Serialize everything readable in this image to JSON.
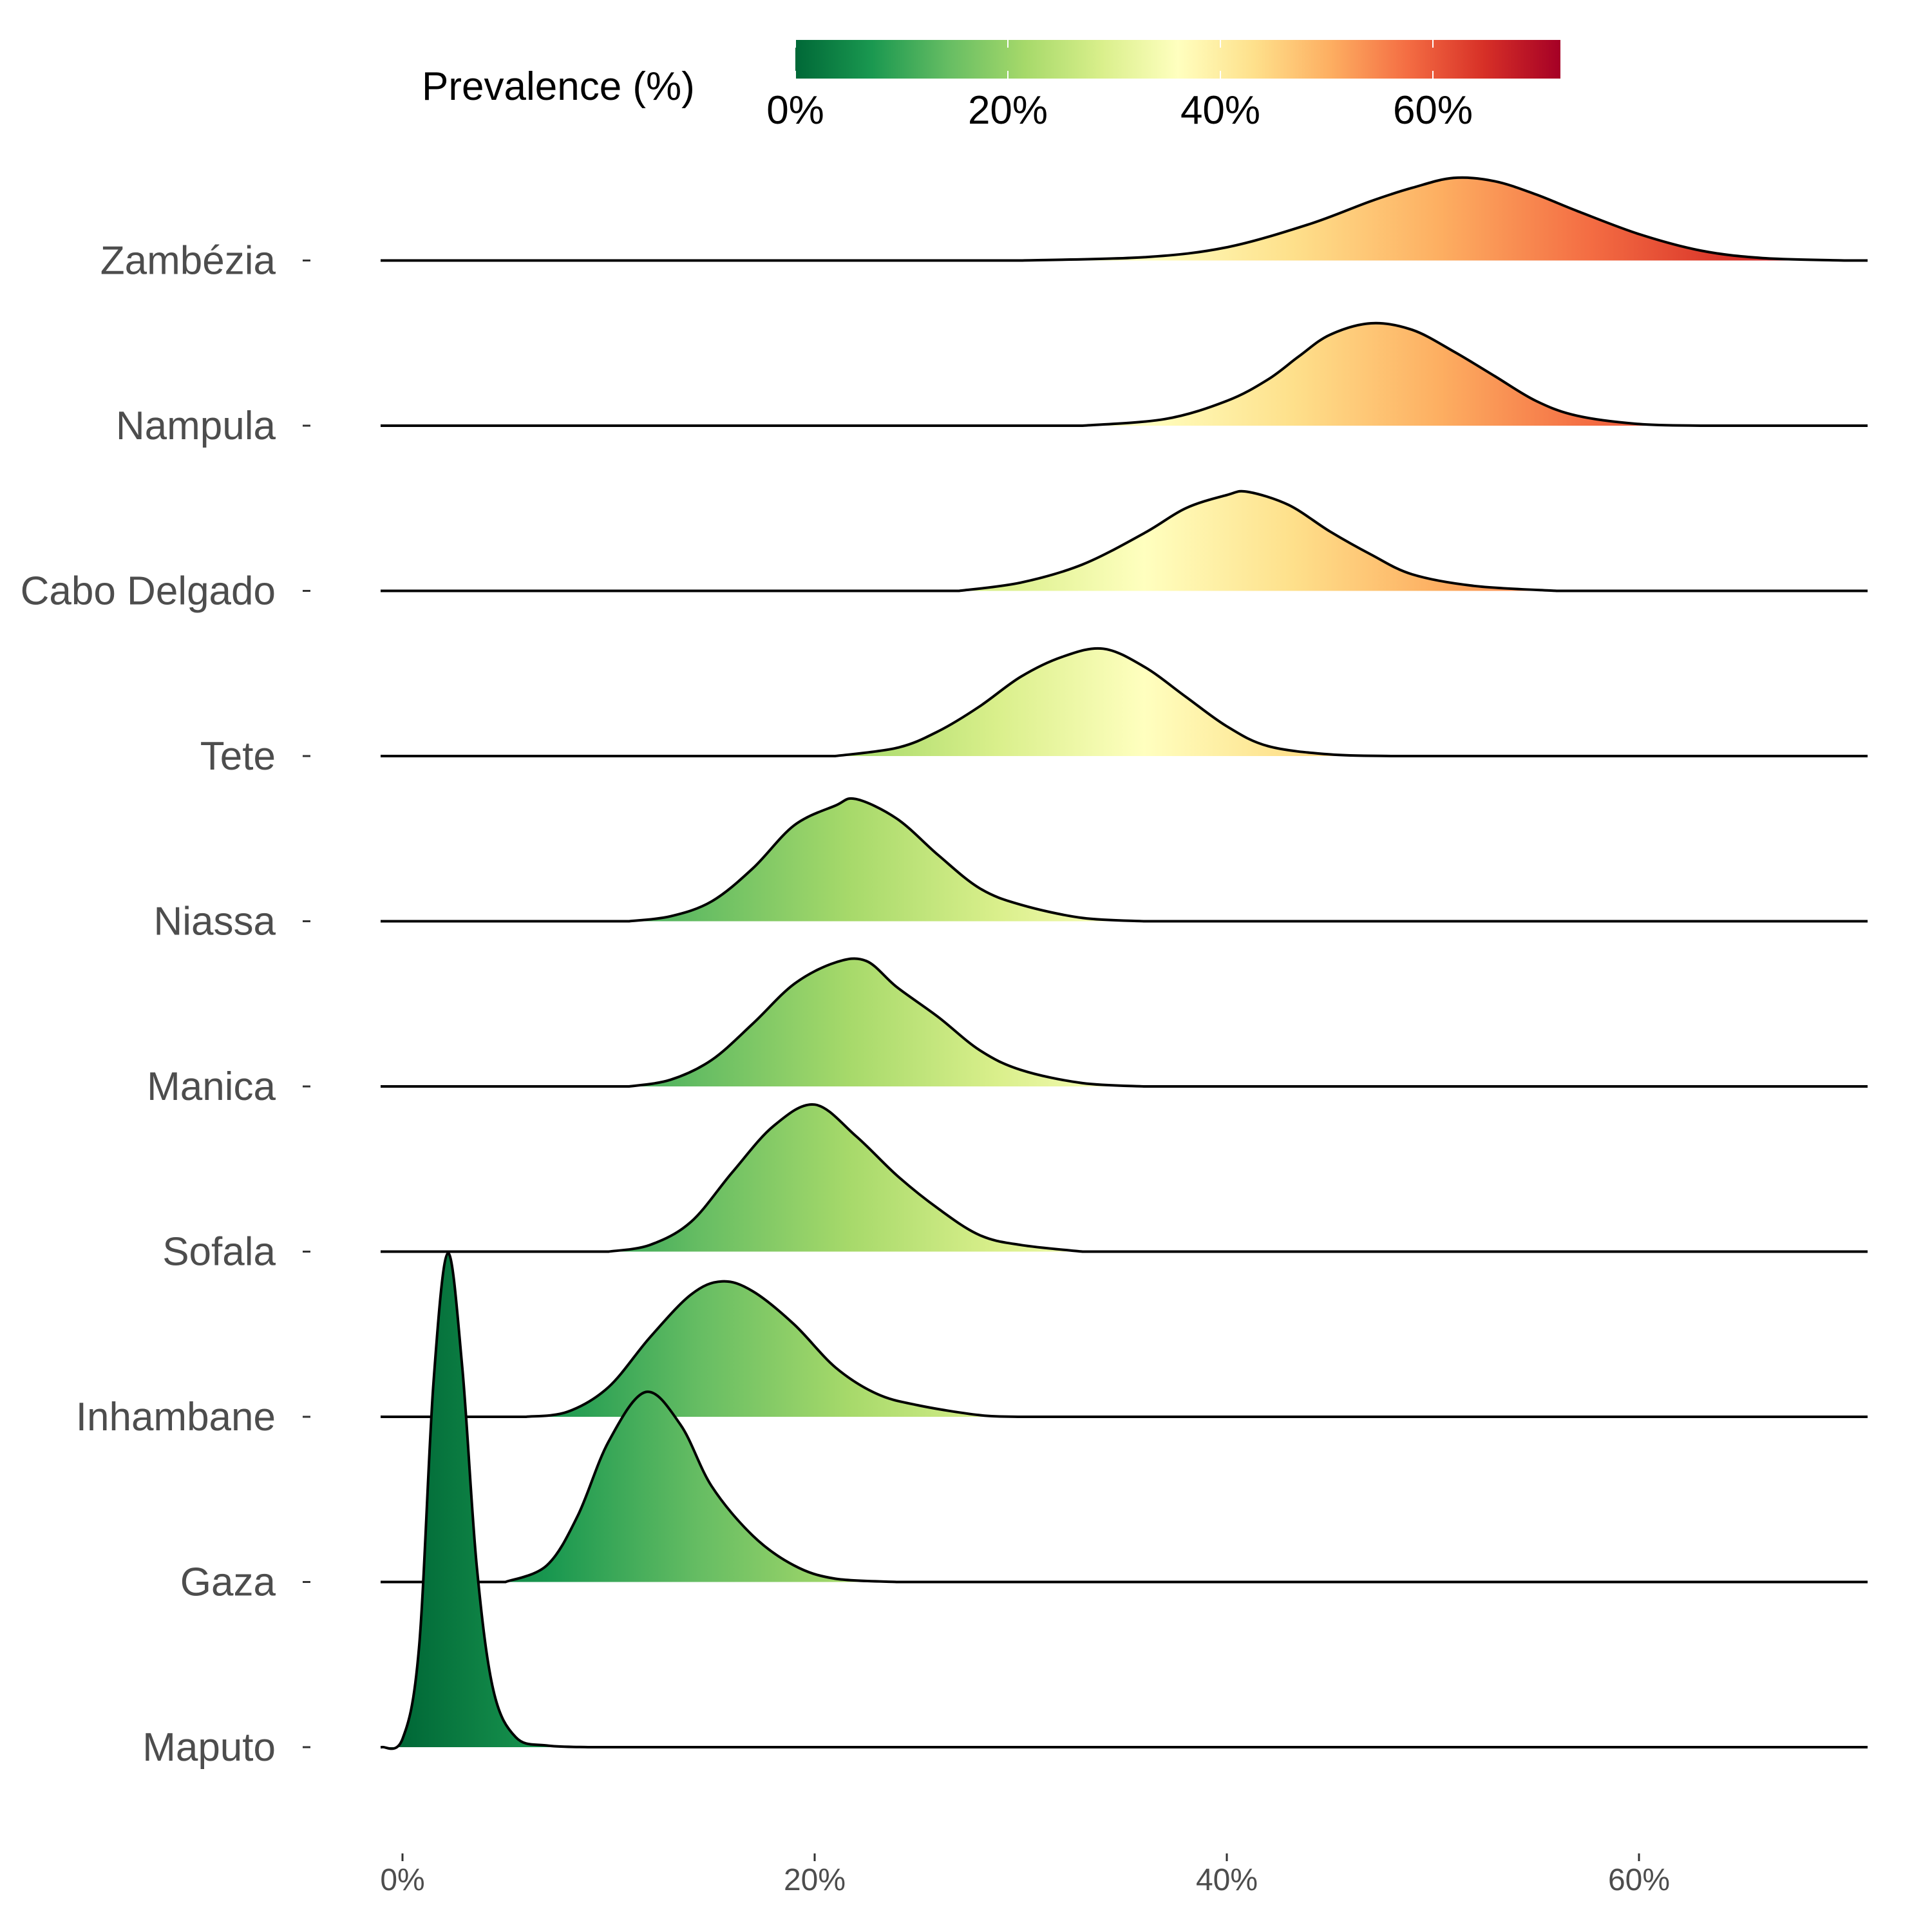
{
  "chart_data": {
    "type": "ridgeline",
    "title": "",
    "xlabel": "",
    "ylabel": "",
    "xlim": [
      -2,
      71
    ],
    "x_ticks": [
      0,
      20,
      40,
      60
    ],
    "x_tick_labels": [
      "0%",
      "20%",
      "40%",
      "60%"
    ],
    "grid": false,
    "legend": {
      "title": "Prevalence (%)",
      "position": "top",
      "type": "colorbar",
      "range": [
        0,
        72
      ],
      "ticks": [
        0,
        20,
        40,
        60
      ],
      "tick_labels": [
        "0%",
        "20%",
        "40%",
        "60%"
      ],
      "palette": [
        "#006837",
        "#1a9850",
        "#66bd63",
        "#a6d96a",
        "#d9ef8b",
        "#ffffbf",
        "#fee08b",
        "#fdae61",
        "#f46d43",
        "#d73027",
        "#a50026"
      ]
    },
    "series": [
      {
        "name": "Zambézia",
        "mode": 51,
        "density": [
          [
            30,
            0
          ],
          [
            36,
            0.02
          ],
          [
            40,
            0.08
          ],
          [
            44,
            0.22
          ],
          [
            47,
            0.36
          ],
          [
            49,
            0.44
          ],
          [
            51,
            0.5
          ],
          [
            53,
            0.48
          ],
          [
            55,
            0.4
          ],
          [
            57,
            0.3
          ],
          [
            60,
            0.16
          ],
          [
            63,
            0.06
          ],
          [
            66,
            0.015
          ],
          [
            70,
            0
          ]
        ]
      },
      {
        "name": "Nampula",
        "mode": 47,
        "density": [
          [
            33,
            0
          ],
          [
            37,
            0.04
          ],
          [
            40,
            0.15
          ],
          [
            42,
            0.28
          ],
          [
            43.5,
            0.42
          ],
          [
            45,
            0.55
          ],
          [
            47,
            0.62
          ],
          [
            49,
            0.58
          ],
          [
            51,
            0.45
          ],
          [
            53,
            0.3
          ],
          [
            55,
            0.15
          ],
          [
            57,
            0.06
          ],
          [
            60,
            0.01
          ],
          [
            63,
            0
          ]
        ]
      },
      {
        "name": "Cabo Delgado",
        "mode": 41,
        "density": [
          [
            27,
            0
          ],
          [
            30,
            0.05
          ],
          [
            33,
            0.16
          ],
          [
            36,
            0.35
          ],
          [
            38,
            0.5
          ],
          [
            40,
            0.58
          ],
          [
            41,
            0.6
          ],
          [
            43,
            0.52
          ],
          [
            45,
            0.36
          ],
          [
            47,
            0.22
          ],
          [
            49,
            0.1
          ],
          [
            52,
            0.03
          ],
          [
            56,
            0
          ]
        ]
      },
      {
        "name": "Tete",
        "mode": 34,
        "density": [
          [
            21,
            0
          ],
          [
            24,
            0.05
          ],
          [
            26,
            0.15
          ],
          [
            28,
            0.3
          ],
          [
            30,
            0.48
          ],
          [
            32,
            0.6
          ],
          [
            34,
            0.65
          ],
          [
            36,
            0.54
          ],
          [
            38,
            0.36
          ],
          [
            40,
            0.18
          ],
          [
            42,
            0.06
          ],
          [
            45,
            0.01
          ],
          [
            48,
            0
          ]
        ]
      },
      {
        "name": "Niassa",
        "mode": 22,
        "density": [
          [
            11,
            0
          ],
          [
            13,
            0.03
          ],
          [
            15,
            0.12
          ],
          [
            17,
            0.32
          ],
          [
            19,
            0.58
          ],
          [
            21,
            0.7
          ],
          [
            22,
            0.74
          ],
          [
            24,
            0.62
          ],
          [
            26,
            0.4
          ],
          [
            28,
            0.2
          ],
          [
            30,
            0.1
          ],
          [
            33,
            0.02
          ],
          [
            36,
            0
          ]
        ]
      },
      {
        "name": "Manica",
        "mode": 22,
        "density": [
          [
            11,
            0
          ],
          [
            13,
            0.04
          ],
          [
            15,
            0.16
          ],
          [
            17,
            0.38
          ],
          [
            19,
            0.62
          ],
          [
            21,
            0.75
          ],
          [
            22.5,
            0.76
          ],
          [
            24,
            0.6
          ],
          [
            26,
            0.42
          ],
          [
            28,
            0.22
          ],
          [
            30,
            0.1
          ],
          [
            33,
            0.02
          ],
          [
            36,
            0
          ]
        ]
      },
      {
        "name": "Sofala",
        "mode": 20,
        "density": [
          [
            10,
            0
          ],
          [
            12,
            0.04
          ],
          [
            14,
            0.18
          ],
          [
            16,
            0.48
          ],
          [
            18,
            0.76
          ],
          [
            20,
            0.89
          ],
          [
            22,
            0.7
          ],
          [
            24,
            0.46
          ],
          [
            26,
            0.26
          ],
          [
            28,
            0.1
          ],
          [
            30,
            0.04
          ],
          [
            33,
            0
          ]
        ]
      },
      {
        "name": "Inhambane",
        "mode": 15.5,
        "density": [
          [
            6,
            0
          ],
          [
            8,
            0.03
          ],
          [
            10,
            0.18
          ],
          [
            12,
            0.48
          ],
          [
            14,
            0.74
          ],
          [
            15.5,
            0.82
          ],
          [
            17,
            0.76
          ],
          [
            19,
            0.56
          ],
          [
            21,
            0.3
          ],
          [
            23,
            0.14
          ],
          [
            25,
            0.07
          ],
          [
            28,
            0.01
          ],
          [
            30,
            0
          ]
        ]
      },
      {
        "name": "Gaza",
        "mode": 11.8,
        "density": [
          [
            5,
            0
          ],
          [
            7,
            0.1
          ],
          [
            8.5,
            0.4
          ],
          [
            10,
            0.85
          ],
          [
            11.8,
            1.15
          ],
          [
            13.5,
            0.95
          ],
          [
            15,
            0.58
          ],
          [
            17,
            0.28
          ],
          [
            19,
            0.1
          ],
          [
            21,
            0.02
          ],
          [
            24,
            0
          ]
        ]
      },
      {
        "name": "Maputo",
        "mode": 2.2,
        "density": [
          [
            -1,
            0
          ],
          [
            0,
            0.05
          ],
          [
            0.8,
            0.6
          ],
          [
            1.5,
            2.2
          ],
          [
            2.2,
            2.99
          ],
          [
            2.9,
            2.3
          ],
          [
            3.6,
            1.1
          ],
          [
            4.4,
            0.35
          ],
          [
            5.5,
            0.06
          ],
          [
            7,
            0.01
          ],
          [
            9,
            0
          ]
        ]
      }
    ]
  }
}
